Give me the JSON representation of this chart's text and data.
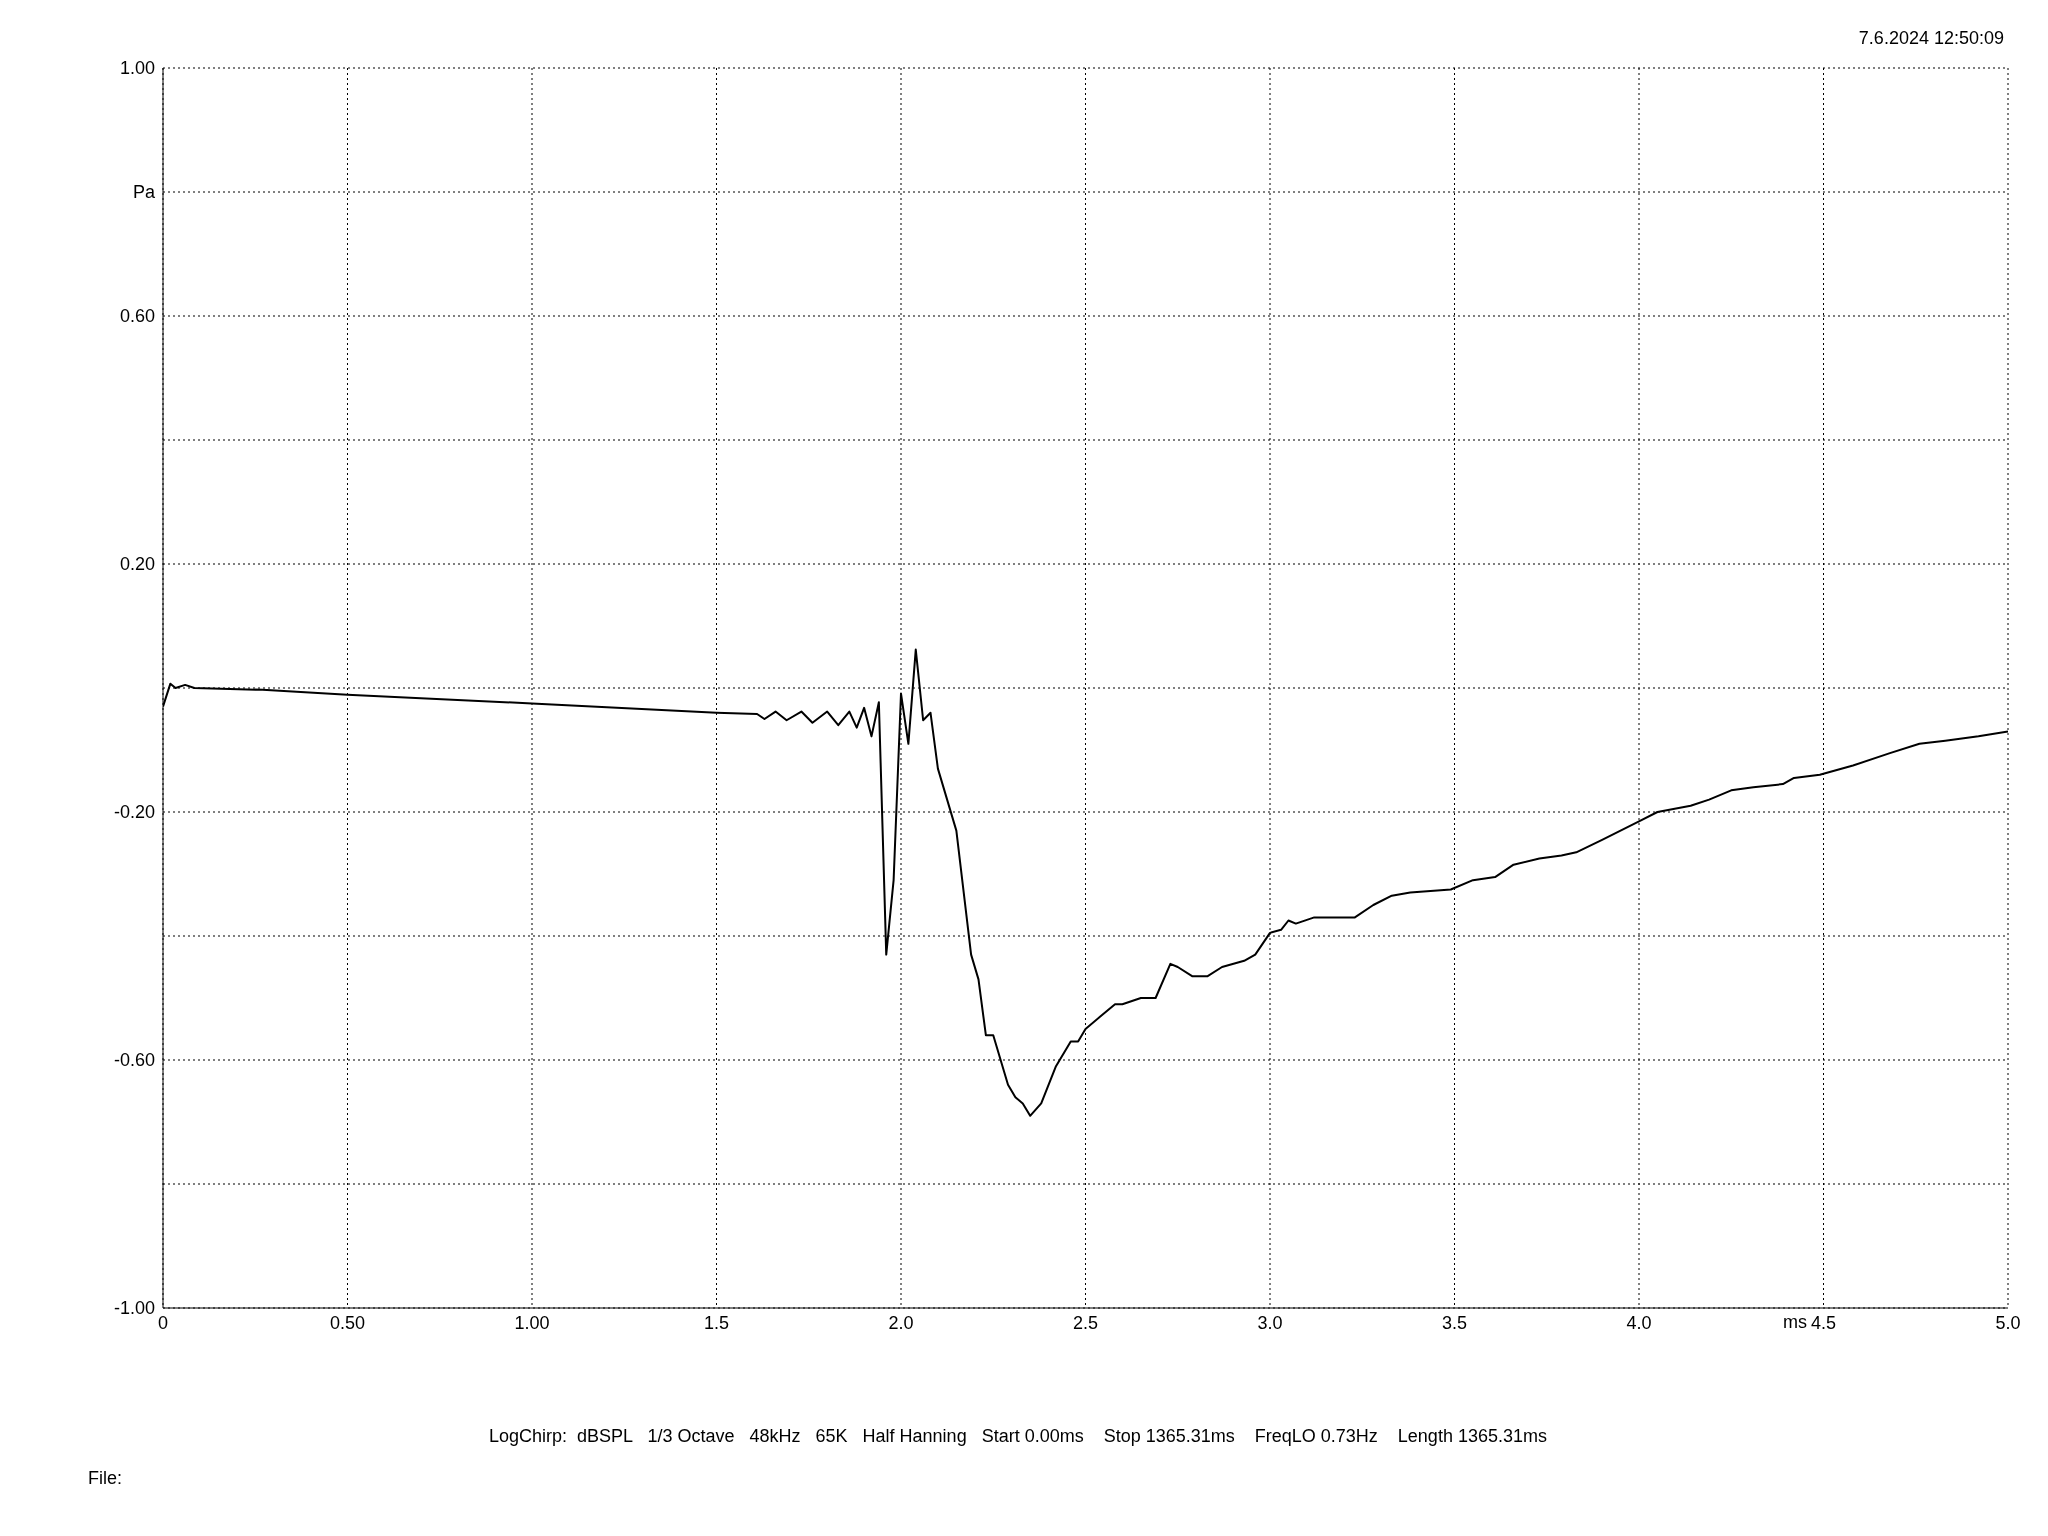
{
  "chart_data": {
    "type": "line",
    "xlabel": "ms",
    "annotations": [
      "7.6.2024 12:50:09",
      "LogChirp:  dBSPL   1/3 Octave   48kHz   65K   Half Hanning   Start 0.00ms    Stop 1365.31ms    FreqLO 0.73Hz    Length 1365.31ms",
      "File:"
    ],
    "x": [
      0,
      0.02,
      0.034,
      0.06,
      0.085,
      0.27,
      0.5,
      1.0,
      1.5,
      1.61,
      1.63,
      1.66,
      1.69,
      1.73,
      1.76,
      1.8,
      1.83,
      1.86,
      1.88,
      1.9,
      1.92,
      1.94,
      1.96,
      1.98,
      2.0,
      2.02,
      2.04,
      2.06,
      2.08,
      2.1,
      2.15,
      2.19,
      2.21,
      2.23,
      2.25,
      2.29,
      2.31,
      2.33,
      2.35,
      2.38,
      2.42,
      2.46,
      2.48,
      2.5,
      2.54,
      2.58,
      2.6,
      2.65,
      2.69,
      2.73,
      2.75,
      2.79,
      2.83,
      2.87,
      2.93,
      2.96,
      3.0,
      3.03,
      3.05,
      3.07,
      3.12,
      3.16,
      3.23,
      3.28,
      3.33,
      3.38,
      3.49,
      3.55,
      3.61,
      3.66,
      3.73,
      3.79,
      3.83,
      3.9,
      4.0,
      4.05,
      4.14,
      4.19,
      4.25,
      4.31,
      4.39,
      4.42,
      4.49,
      4.58,
      4.68,
      4.76,
      4.83,
      4.92,
      5.0
    ],
    "series": [
      {
        "color": "#000000",
        "values": [
          -0.03,
          0.007,
          0.0,
          0.005,
          0.0,
          -0.003,
          -0.011,
          -0.025,
          -0.04,
          -0.042,
          -0.05,
          -0.038,
          -0.052,
          -0.038,
          -0.056,
          -0.038,
          -0.06,
          -0.038,
          -0.064,
          -0.032,
          -0.078,
          -0.023,
          -0.43,
          -0.31,
          -0.009,
          -0.09,
          0.062,
          -0.052,
          -0.04,
          -0.13,
          -0.23,
          -0.43,
          -0.47,
          -0.56,
          -0.56,
          -0.64,
          -0.66,
          -0.67,
          -0.69,
          -0.67,
          -0.61,
          -0.57,
          -0.57,
          -0.55,
          -0.53,
          -0.51,
          -0.51,
          -0.5,
          -0.5,
          -0.445,
          -0.45,
          -0.465,
          -0.465,
          -0.45,
          -0.44,
          -0.43,
          -0.395,
          -0.39,
          -0.375,
          -0.38,
          -0.37,
          -0.37,
          -0.37,
          -0.35,
          -0.335,
          -0.33,
          -0.325,
          -0.31,
          -0.305,
          -0.285,
          -0.275,
          -0.27,
          -0.265,
          -0.245,
          -0.215,
          -0.2,
          -0.19,
          -0.18,
          -0.165,
          -0.16,
          -0.155,
          -0.145,
          -0.14,
          -0.125,
          -0.105,
          -0.09,
          -0.085,
          -0.078,
          -0.07
        ]
      }
    ],
    "xlim": [
      0,
      5
    ],
    "xticks": [
      0,
      {
        "value": 0.5,
        "label": "0.50"
      },
      {
        "value": 1,
        "label": "1.00"
      },
      1.5,
      {
        "value": 2,
        "label": "2.0"
      },
      2.5,
      {
        "value": 3,
        "label": "3.0"
      },
      3.5,
      {
        "value": 4,
        "label": "4.0"
      },
      4.5,
      {
        "value": 5,
        "label": "5.0"
      }
    ],
    "ylim": [
      -1,
      1
    ],
    "yticks": [
      {
        "value": 1,
        "label": "1.00"
      },
      {
        "value": 0.8,
        "label": "Pa"
      },
      {
        "value": 0.6,
        "label": "0.60"
      },
      {
        "value": 0.4,
        "label": null
      },
      {
        "value": 0.2,
        "label": "0.20"
      },
      {
        "value": 0,
        "label": null
      },
      {
        "value": -0.2,
        "label": "-0.20"
      },
      {
        "value": -0.4,
        "label": null
      },
      {
        "value": -0.6,
        "label": "-0.60"
      },
      {
        "value": -0.8,
        "label": null
      },
      {
        "value": -1,
        "label": "-1.00"
      }
    ],
    "grid": true,
    "marker": "none",
    "line_style": "solid"
  }
}
